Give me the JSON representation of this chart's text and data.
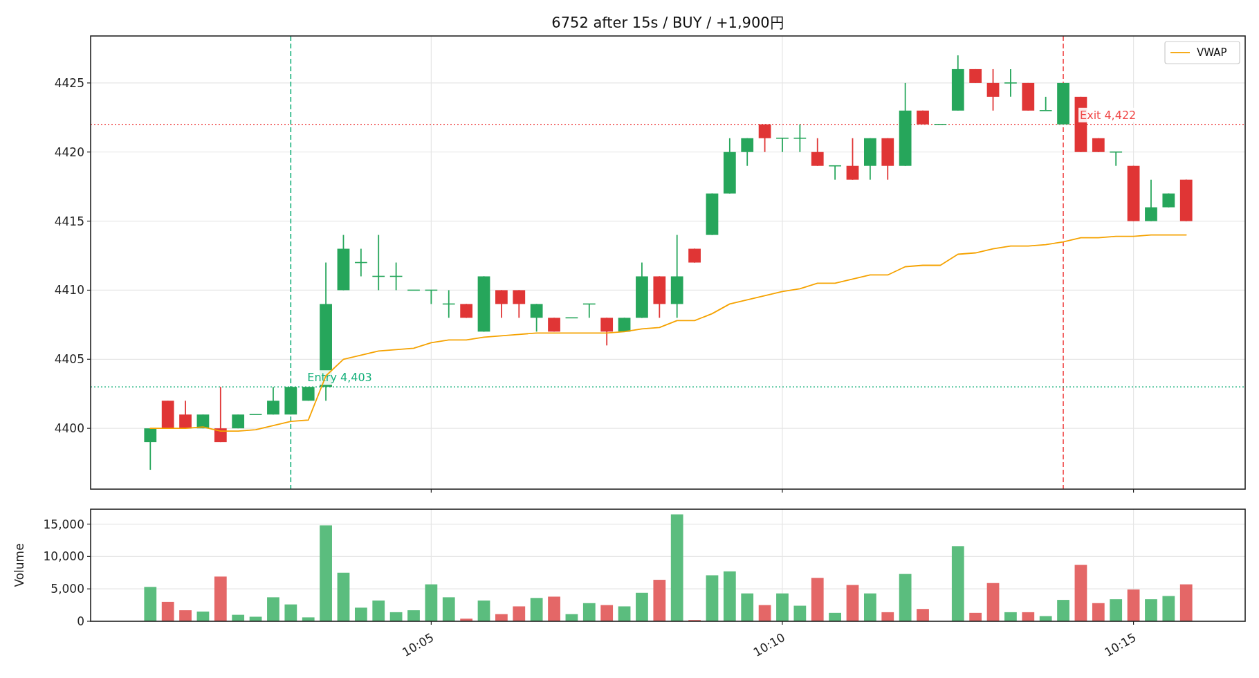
{
  "chart_data": [
    {
      "type": "candlestick",
      "title": "6752 after 15s / BUY / +1,900円",
      "x": [
        10.016667,
        10.020833,
        10.025,
        10.029167,
        10.033333,
        10.0375,
        10.041667,
        10.045833,
        10.05,
        10.054167,
        10.058333,
        10.0625,
        10.066667,
        10.070833,
        10.075,
        10.079167,
        10.083333,
        10.0875,
        10.091667,
        10.095833,
        10.1,
        10.104167,
        10.108333,
        10.1125,
        10.116667,
        10.120833,
        10.125,
        10.129167,
        10.133333,
        10.1375,
        10.141667,
        10.145833,
        10.15,
        10.154167,
        10.158333,
        10.1625,
        10.166667,
        10.170833,
        10.175,
        10.179167,
        10.183333,
        10.1875,
        10.191667,
        10.195833,
        10.2,
        10.204167,
        10.208333,
        10.2125,
        10.216667,
        10.220833,
        10.225,
        10.229167,
        10.233333,
        10.2375,
        10.241667,
        10.245833,
        10.25,
        10.254167,
        10.258333,
        10.2625
      ],
      "ohlc": [
        [
          4399,
          4400,
          4397,
          4400
        ],
        [
          4402,
          4402,
          4400,
          4400
        ],
        [
          4401,
          4402,
          4400,
          4400
        ],
        [
          4400,
          4401,
          4400,
          4401
        ],
        [
          4400,
          4403,
          4399,
          4399
        ],
        [
          4400,
          4401,
          4400,
          4401
        ],
        [
          4401,
          4401,
          4401,
          4401
        ],
        [
          4401,
          4403,
          4401,
          4402
        ],
        [
          4401,
          4403,
          4401,
          4403
        ],
        [
          4402,
          4403,
          4402,
          4403
        ],
        [
          4403,
          4412,
          4402,
          4409
        ],
        [
          4410,
          4414,
          4410,
          4413
        ],
        [
          4412,
          4413,
          4411,
          4412
        ],
        [
          4411,
          4414,
          4410,
          4411
        ],
        [
          4411,
          4412,
          4410,
          4411
        ],
        [
          4410,
          4410,
          4410,
          4410
        ],
        [
          4410,
          4410,
          4409,
          4410
        ],
        [
          4409,
          4410,
          4408,
          4409
        ],
        [
          4409,
          4409,
          4408,
          4408
        ],
        [
          4407,
          4411,
          4407,
          4411
        ],
        [
          4410,
          4410,
          4408,
          4409
        ],
        [
          4410,
          4410,
          4408,
          4409
        ],
        [
          4408,
          4409,
          4407,
          4409
        ],
        [
          4408,
          4408,
          4407,
          4407
        ],
        [
          4408,
          4408,
          4408,
          4408
        ],
        [
          4409,
          4409,
          4408,
          4409
        ],
        [
          4408,
          4408,
          4406,
          4407
        ],
        [
          4407,
          4408,
          4407,
          4408
        ],
        [
          4408,
          4412,
          4408,
          4411
        ],
        [
          4411,
          4411,
          4408,
          4409
        ],
        [
          4409,
          4414,
          4408,
          4411
        ],
        [
          4413,
          4413,
          4412,
          4412
        ],
        [
          4414,
          4417,
          4414,
          4417
        ],
        [
          4417,
          4421,
          4417,
          4420
        ],
        [
          4420,
          4421,
          4419,
          4421
        ],
        [
          4422,
          4422,
          4420,
          4421
        ],
        [
          4421,
          4421,
          4420,
          4421
        ],
        [
          4421,
          4422,
          4420,
          4421
        ],
        [
          4420,
          4421,
          4419,
          4419
        ],
        [
          4419,
          4419,
          4418,
          4419
        ],
        [
          4419,
          4421,
          4418,
          4418
        ],
        [
          4419,
          4421,
          4418,
          4421
        ],
        [
          4421,
          4421,
          4418,
          4419
        ],
        [
          4419,
          4425,
          4419,
          4423
        ],
        [
          4423,
          4423,
          4422,
          4422
        ],
        [
          4422,
          4422,
          4422,
          4422
        ],
        [
          4423,
          4427,
          4423,
          4426
        ],
        [
          4426,
          4426,
          4425,
          4425
        ],
        [
          4425,
          4426,
          4423,
          4424
        ],
        [
          4425,
          4426,
          4424,
          4425
        ],
        [
          4425,
          4425,
          4423,
          4423
        ],
        [
          4423,
          4424,
          4423,
          4423
        ],
        [
          4422,
          4425,
          4422,
          4425
        ],
        [
          4424,
          4424,
          4420,
          4420
        ],
        [
          4421,
          4421,
          4420,
          4420
        ],
        [
          4420,
          4420,
          4419,
          4420
        ],
        [
          4419,
          4419,
          4415,
          4415
        ],
        [
          4415,
          4418,
          4415,
          4416
        ],
        [
          4416,
          4417,
          4416,
          4417
        ],
        [
          4418,
          4418,
          4415,
          4415
        ]
      ],
      "colors": [
        "#26a65b",
        "#e03535",
        "#e03535",
        "#26a65b",
        "#e03535",
        "#26a65b",
        "#26a65b",
        "#26a65b",
        "#26a65b",
        "#26a65b",
        "#26a65b",
        "#26a65b",
        "#26a65b",
        "#26a65b",
        "#26a65b",
        "#26a65b",
        "#26a65b",
        "#26a65b",
        "#e03535",
        "#26a65b",
        "#e03535",
        "#e03535",
        "#26a65b",
        "#e03535",
        "#26a65b",
        "#26a65b",
        "#e03535",
        "#26a65b",
        "#26a65b",
        "#e03535",
        "#26a65b",
        "#e03535",
        "#26a65b",
        "#26a65b",
        "#26a65b",
        "#e03535",
        "#26a65b",
        "#26a65b",
        "#e03535",
        "#26a65b",
        "#e03535",
        "#26a65b",
        "#e03535",
        "#26a65b",
        "#e03535",
        "#26a65b",
        "#26a65b",
        "#e03535",
        "#e03535",
        "#26a65b",
        "#e03535",
        "#26a65b",
        "#26a65b",
        "#e03535",
        "#e03535",
        "#26a65b",
        "#e03535",
        "#26a65b",
        "#26a65b",
        "#e03535"
      ],
      "series": [
        {
          "type": "line",
          "name": "VWAP",
          "color": "#f5a200",
          "values": [
            4400.0,
            4400.0,
            4400.0,
            4400.1,
            4399.8,
            4399.8,
            4399.9,
            4400.2,
            4400.5,
            4400.6,
            4403.8,
            4405.0,
            4405.3,
            4405.6,
            4405.7,
            4405.8,
            4406.2,
            4406.4,
            4406.4,
            4406.6,
            4406.7,
            4406.8,
            4406.9,
            4406.9,
            4406.9,
            4406.9,
            4406.9,
            4407.0,
            4407.2,
            4407.3,
            4407.8,
            4407.8,
            4408.3,
            4409.0,
            4409.3,
            4409.6,
            4409.9,
            4410.1,
            4410.5,
            4410.5,
            4410.8,
            4411.1,
            4411.1,
            4411.7,
            4411.8,
            4411.8,
            4412.6,
            4412.7,
            4413.0,
            4413.2,
            4413.2,
            4413.3,
            4413.5,
            4413.8,
            4413.8,
            4413.9,
            4413.9,
            4414.0,
            4414.0,
            4414.0
          ]
        }
      ],
      "xlim": [
        10.0025,
        10.2765
      ],
      "xticks": [
        {
          "value": 10.083333,
          "label": null
        },
        {
          "value": 10.166667,
          "label": null
        },
        {
          "value": 10.25,
          "label": null
        }
      ],
      "ylim": [
        4395.6,
        4428.4
      ],
      "yticks": [
        4400,
        4405,
        4410,
        4415,
        4420,
        4425
      ],
      "tick_labels": "y",
      "grid": true,
      "legend": "top right",
      "ref_lines": [
        {
          "axis": "x",
          "value": 10.05,
          "color": "#14b07a",
          "line_style": "dashed"
        },
        {
          "axis": "x",
          "value": 10.233333,
          "color": "#f04848",
          "line_style": "dashed"
        },
        {
          "axis": "y",
          "value": 4403,
          "color": "#14b07a",
          "line_style": "dotted"
        },
        {
          "axis": "y",
          "value": 4422,
          "color": "#f04848",
          "line_style": "dotted"
        }
      ],
      "annotations": [
        {
          "text": "Entry 4,403",
          "x": 10.05,
          "y": 4403
        },
        {
          "text": "Exit 4,422",
          "x": 10.233333,
          "y": 4422
        }
      ]
    },
    {
      "type": "bar",
      "ylabel": "Volume",
      "x": [
        10.016667,
        10.020833,
        10.025,
        10.029167,
        10.033333,
        10.0375,
        10.041667,
        10.045833,
        10.05,
        10.054167,
        10.058333,
        10.0625,
        10.066667,
        10.070833,
        10.075,
        10.079167,
        10.083333,
        10.0875,
        10.091667,
        10.095833,
        10.1,
        10.104167,
        10.108333,
        10.1125,
        10.116667,
        10.120833,
        10.125,
        10.129167,
        10.133333,
        10.1375,
        10.141667,
        10.145833,
        10.15,
        10.154167,
        10.158333,
        10.1625,
        10.166667,
        10.170833,
        10.175,
        10.179167,
        10.183333,
        10.1875,
        10.191667,
        10.195833,
        10.2,
        10.204167,
        10.208333,
        10.2125,
        10.216667,
        10.220833,
        10.225,
        10.229167,
        10.233333,
        10.2375,
        10.241667,
        10.245833,
        10.25,
        10.254167,
        10.258333,
        10.2625
      ],
      "values": [
        5300,
        3000,
        1700,
        1500,
        6900,
        1000,
        700,
        3700,
        2600,
        600,
        14800,
        7500,
        2100,
        3200,
        1400,
        1700,
        5700,
        3700,
        400,
        3200,
        1100,
        2300,
        3600,
        3800,
        1100,
        2800,
        2500,
        2300,
        4400,
        6400,
        16500,
        200,
        7100,
        7700,
        4300,
        2500,
        4300,
        2400,
        6700,
        1300,
        5600,
        4300,
        1400,
        7300,
        1900,
        null,
        11600,
        1300,
        5900,
        1400,
        1400,
        800,
        3300,
        8700,
        2800,
        3400,
        4900,
        3400,
        3900,
        5700
      ],
      "colors": [
        "#5bbd7e",
        "#e46767",
        "#e46767",
        "#5bbd7e",
        "#e46767",
        "#5bbd7e",
        "#5bbd7e",
        "#5bbd7e",
        "#5bbd7e",
        "#5bbd7e",
        "#5bbd7e",
        "#5bbd7e",
        "#5bbd7e",
        "#5bbd7e",
        "#5bbd7e",
        "#5bbd7e",
        "#5bbd7e",
        "#5bbd7e",
        "#e46767",
        "#5bbd7e",
        "#e46767",
        "#e46767",
        "#5bbd7e",
        "#e46767",
        "#5bbd7e",
        "#5bbd7e",
        "#e46767",
        "#5bbd7e",
        "#5bbd7e",
        "#e46767",
        "#5bbd7e",
        "#e46767",
        "#5bbd7e",
        "#5bbd7e",
        "#5bbd7e",
        "#e46767",
        "#5bbd7e",
        "#5bbd7e",
        "#e46767",
        "#5bbd7e",
        "#e46767",
        "#5bbd7e",
        "#e46767",
        "#5bbd7e",
        "#e46767",
        "#5bbd7e",
        "#5bbd7e",
        "#e46767",
        "#e46767",
        "#5bbd7e",
        "#e46767",
        "#5bbd7e",
        "#5bbd7e",
        "#e46767",
        "#e46767",
        "#5bbd7e",
        "#e46767",
        "#5bbd7e",
        "#5bbd7e",
        "#e46767"
      ],
      "xlim": [
        10.0025,
        10.2765
      ],
      "xticks": [
        {
          "value": 10.083333,
          "label": "10:05"
        },
        {
          "value": 10.166667,
          "label": "10:10"
        },
        {
          "value": 10.25,
          "label": "10:15"
        }
      ],
      "ylim": [
        0,
        17300
      ],
      "yticks": [
        0,
        {
          "value": 5000,
          "label": "5,000"
        },
        {
          "value": 10000,
          "label": "10,000"
        },
        {
          "value": 15000,
          "label": "15,000"
        }
      ],
      "grid": true
    }
  ]
}
